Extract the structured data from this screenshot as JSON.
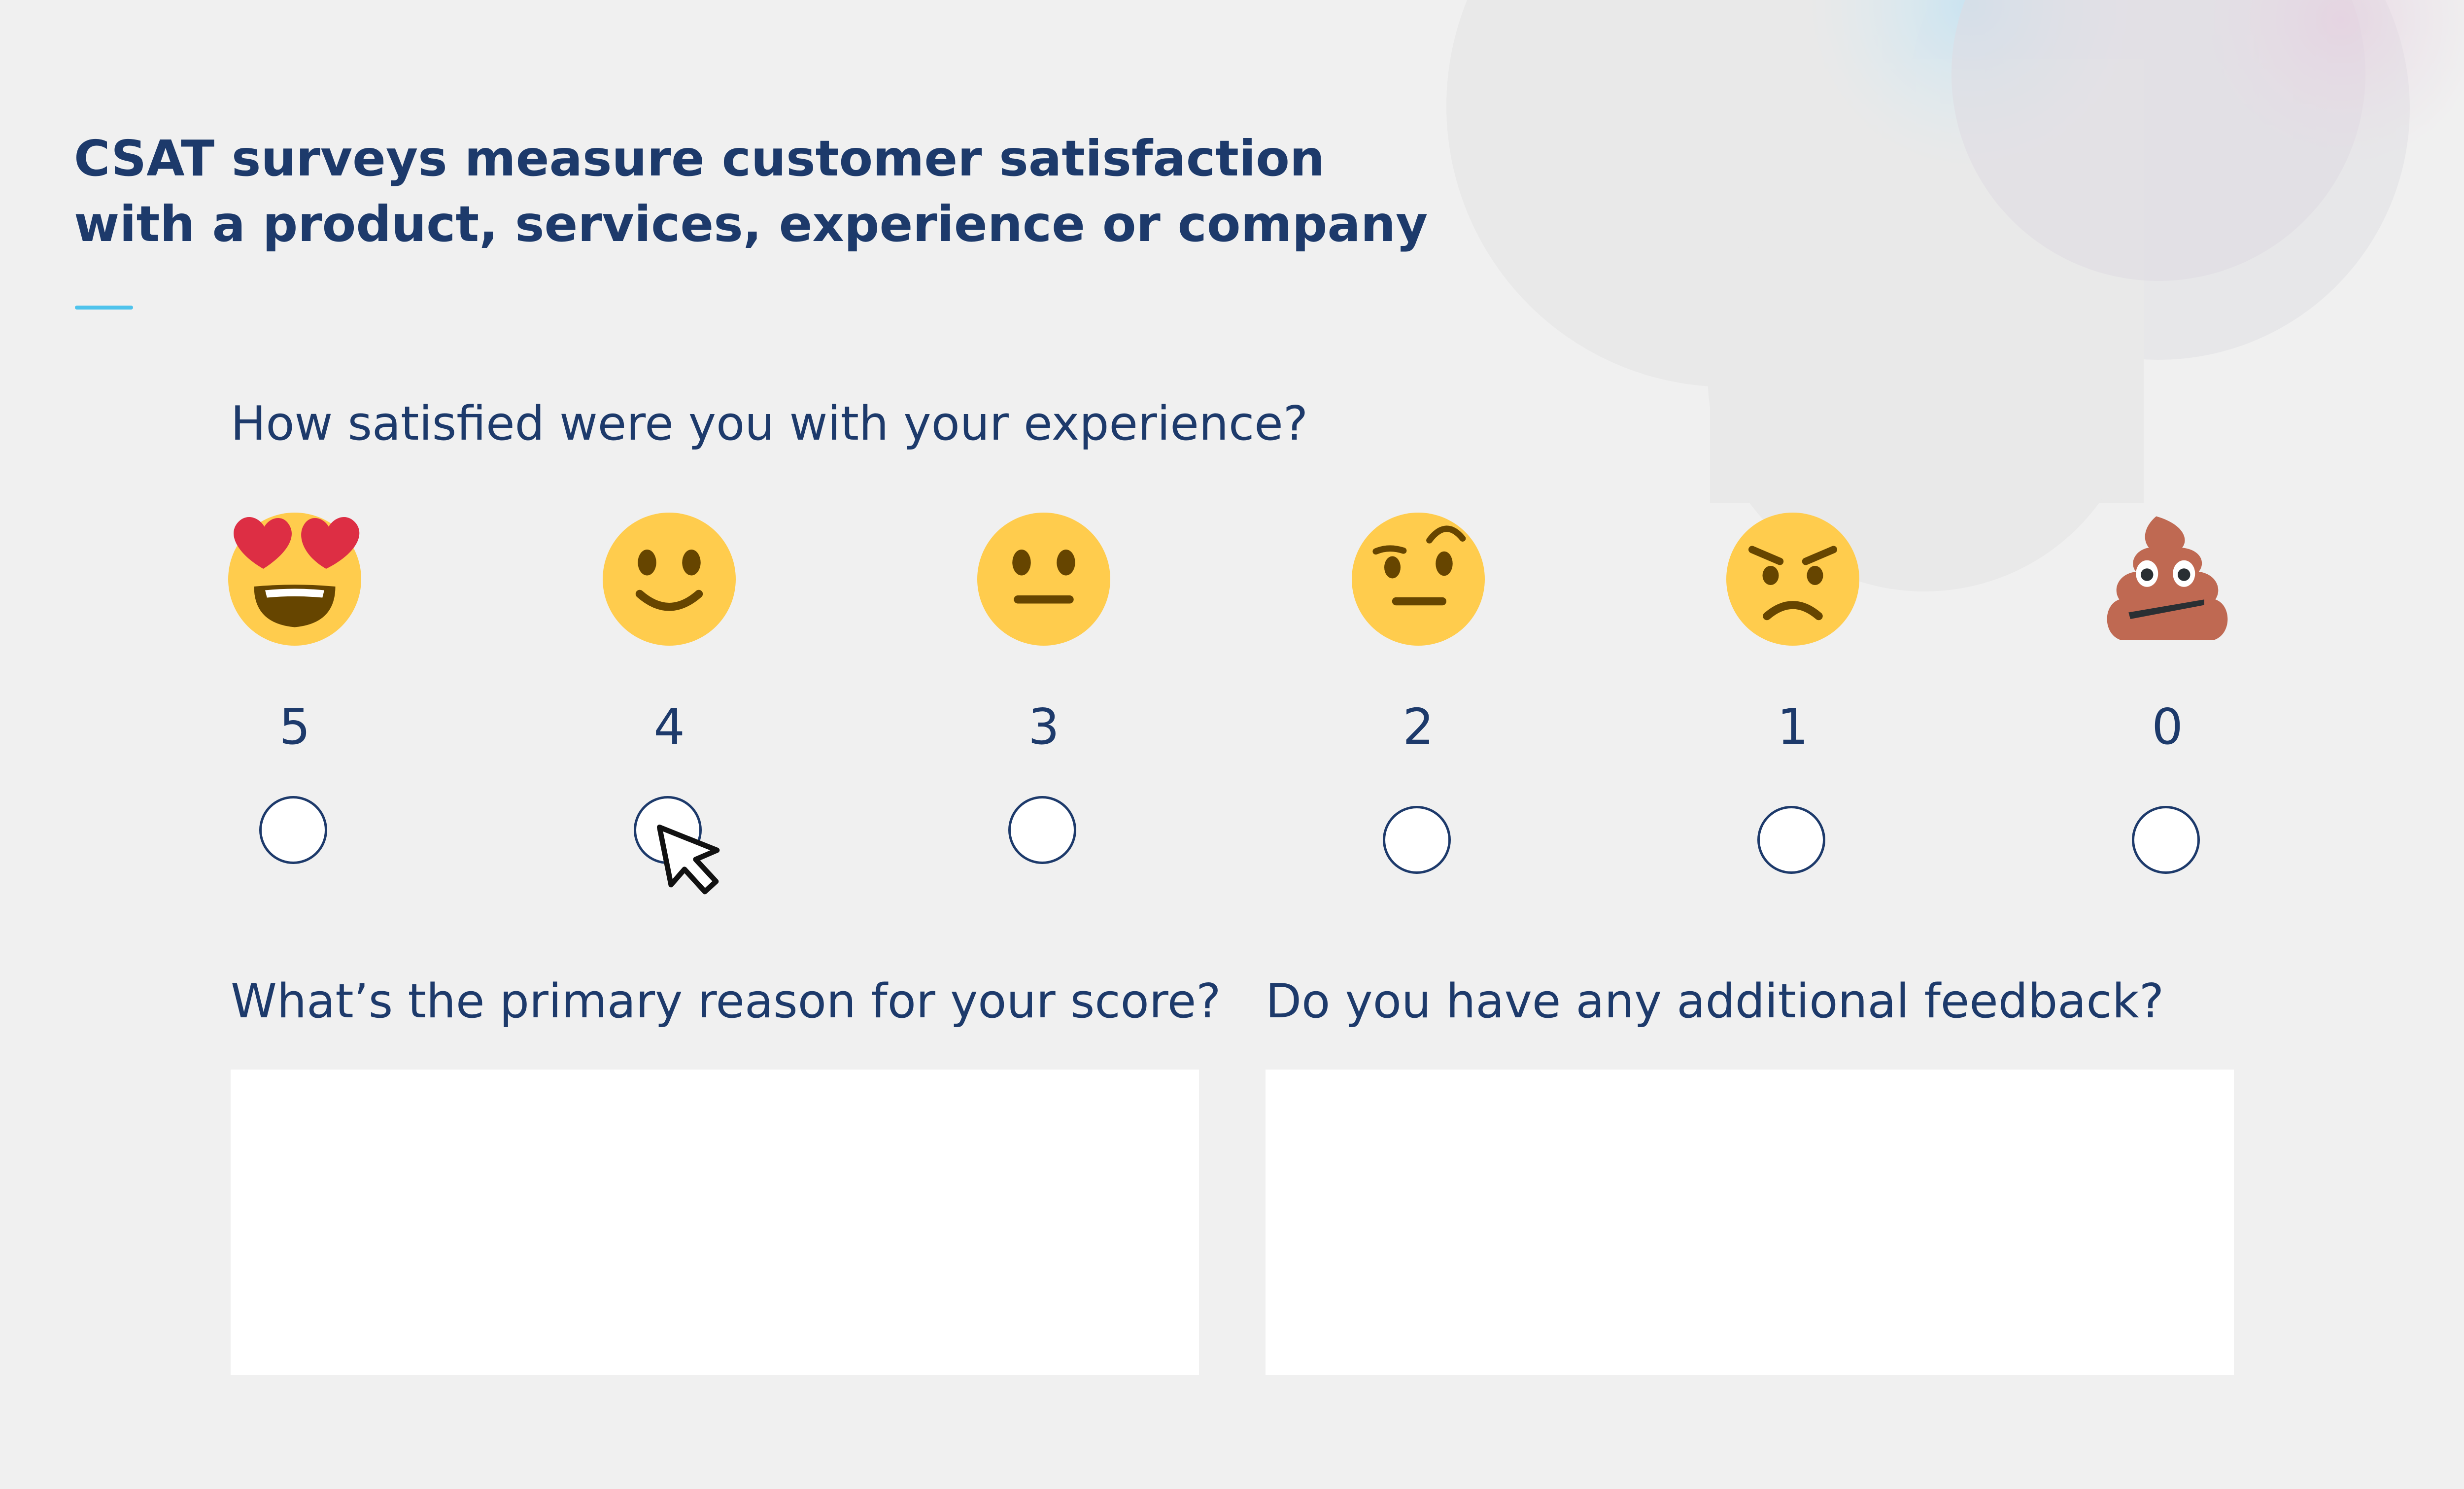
{
  "heading": {
    "line1": "CSAT surveys measure customer satisfaction",
    "line2": "with a product, services, experience or company"
  },
  "survey": {
    "question": "How satisfied were you with your experience?",
    "options": [
      {
        "score": "5",
        "icon": "heart-eyes-face-icon"
      },
      {
        "score": "4",
        "icon": "slightly-smiling-face-icon"
      },
      {
        "score": "3",
        "icon": "neutral-face-icon"
      },
      {
        "score": "2",
        "icon": "raised-eyebrow-face-icon"
      },
      {
        "score": "1",
        "icon": "angry-face-icon"
      },
      {
        "score": "0",
        "icon": "pile-of-poo-icon"
      }
    ]
  },
  "reason": {
    "label": "What’s the primary reason for your score?",
    "value": ""
  },
  "feedback": {
    "label": "Do you have any additional feedback?",
    "value": ""
  },
  "colors": {
    "background": "#f0f0f0",
    "text": "#1d3a6b",
    "accent": "#4fc3ec",
    "emoji_face": "#ffcc4d",
    "emoji_heart": "#dd2e44",
    "emoji_poo": "#bf6952"
  }
}
